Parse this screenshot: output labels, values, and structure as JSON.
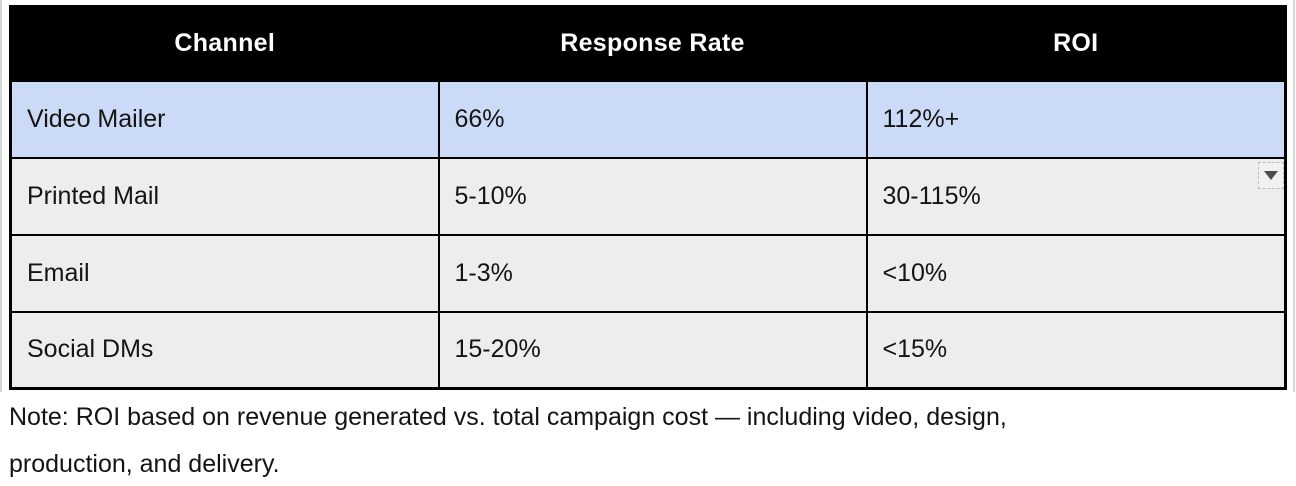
{
  "table": {
    "columns": [
      {
        "label": "Channel"
      },
      {
        "label": "Response Rate"
      },
      {
        "label": "ROI"
      }
    ],
    "rows": [
      {
        "channel": "Video Mailer",
        "response_rate": "66%",
        "roi": "112%+",
        "highlighted": true
      },
      {
        "channel": "Printed Mail",
        "response_rate": "5-10%",
        "roi": "30-115%",
        "highlighted": false
      },
      {
        "channel": "Email",
        "response_rate": "1-3%",
        "roi": "<10%",
        "highlighted": false
      },
      {
        "channel": "Social DMs",
        "response_rate": "15-20%",
        "roi": "<15%",
        "highlighted": false
      }
    ]
  },
  "note": {
    "line1": "Note: ROI based on revenue generated vs. total campaign cost — including video, design,",
    "line2": "production, and delivery."
  },
  "icons": {
    "dropdown": "caret-down"
  },
  "colors": {
    "header_bg": "#000000",
    "header_text": "#ffffff",
    "highlight_row_bg": "#cbdaf6",
    "row_bg": "#ededed",
    "border": "#000000",
    "dropdown_bg": "#f1f1f1",
    "dropdown_arrow": "#4d4d4d",
    "text": "#141414"
  }
}
